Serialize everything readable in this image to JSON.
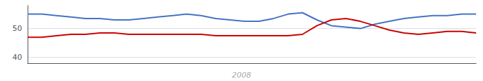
{
  "chart_data": {
    "type": "line",
    "annotation": "2008",
    "categories": [
      null,
      null,
      null,
      null,
      null,
      null,
      null,
      null,
      null,
      null,
      null,
      null,
      null,
      null,
      null,
      null,
      null,
      null,
      null,
      null,
      null,
      null,
      null,
      null,
      null,
      null,
      null,
      null,
      null,
      null,
      null,
      null
    ],
    "series": [
      {
        "color": "#4472c4",
        "values": [
          55.0,
          55.0,
          54.5,
          54.0,
          53.5,
          53.5,
          53.0,
          53.0,
          53.5,
          54.0,
          54.5,
          55.0,
          54.5,
          53.5,
          53.0,
          52.5,
          52.5,
          53.5,
          55.0,
          55.5,
          53.0,
          51.0,
          50.5,
          50.0,
          51.5,
          52.5,
          53.5,
          54.0,
          54.5,
          54.5,
          55.0,
          55.0
        ]
      },
      {
        "color": "#cc0000",
        "values": [
          47.0,
          47.0,
          47.5,
          48.0,
          48.0,
          48.5,
          48.5,
          48.0,
          48.0,
          48.0,
          48.0,
          48.0,
          48.0,
          47.5,
          47.5,
          47.5,
          47.5,
          47.5,
          47.5,
          48.0,
          51.0,
          53.0,
          53.5,
          52.5,
          51.0,
          49.5,
          48.5,
          48.0,
          48.5,
          49.0,
          49.0,
          48.5
        ]
      }
    ],
    "ylim": [
      38,
      58
    ],
    "yticks": [
      40,
      50
    ],
    "grid": true,
    "tick_labels": "y"
  }
}
